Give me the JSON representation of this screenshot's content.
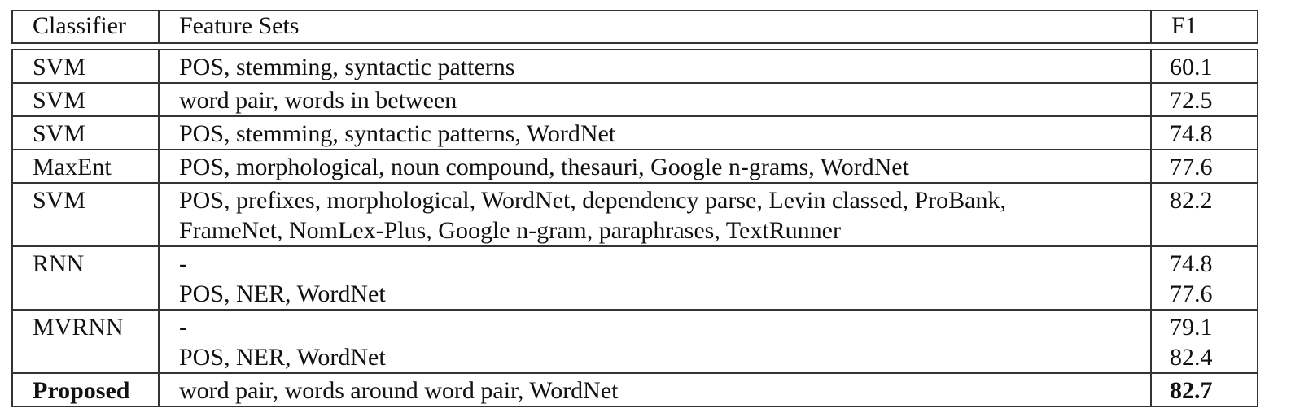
{
  "table": {
    "headers": [
      "Classifier",
      "Feature Sets",
      "F1"
    ],
    "rows": [
      {
        "classifier": "SVM",
        "features": [
          "POS, stemming, syntactic patterns"
        ],
        "f1": [
          "60.1"
        ]
      },
      {
        "classifier": "SVM",
        "features": [
          "word pair, words in between"
        ],
        "f1": [
          "72.5"
        ]
      },
      {
        "classifier": "SVM",
        "features": [
          "POS, stemming, syntactic patterns, WordNet"
        ],
        "f1": [
          "74.8"
        ]
      },
      {
        "classifier": "MaxEnt",
        "features": [
          "POS, morphological, noun compound, thesauri, Google n-grams, WordNet"
        ],
        "f1": [
          "77.6"
        ]
      },
      {
        "classifier": "SVM",
        "features": [
          "POS, prefixes, morphological, WordNet, dependency parse, Levin classed, ProBank,",
          "FrameNet, NomLex-Plus, Google n-gram, paraphrases, TextRunner"
        ],
        "f1": [
          "82.2",
          ""
        ]
      },
      {
        "classifier": "RNN",
        "features": [
          "-",
          "POS, NER, WordNet"
        ],
        "f1": [
          "74.8",
          "77.6"
        ]
      },
      {
        "classifier": "MVRNN",
        "features": [
          "-",
          "POS, NER, WordNet"
        ],
        "f1": [
          "79.1",
          "82.4"
        ]
      },
      {
        "classifier": "Proposed",
        "features": [
          "word pair, words around word pair, WordNet"
        ],
        "f1": [
          "82.7"
        ],
        "bold": true
      }
    ]
  }
}
